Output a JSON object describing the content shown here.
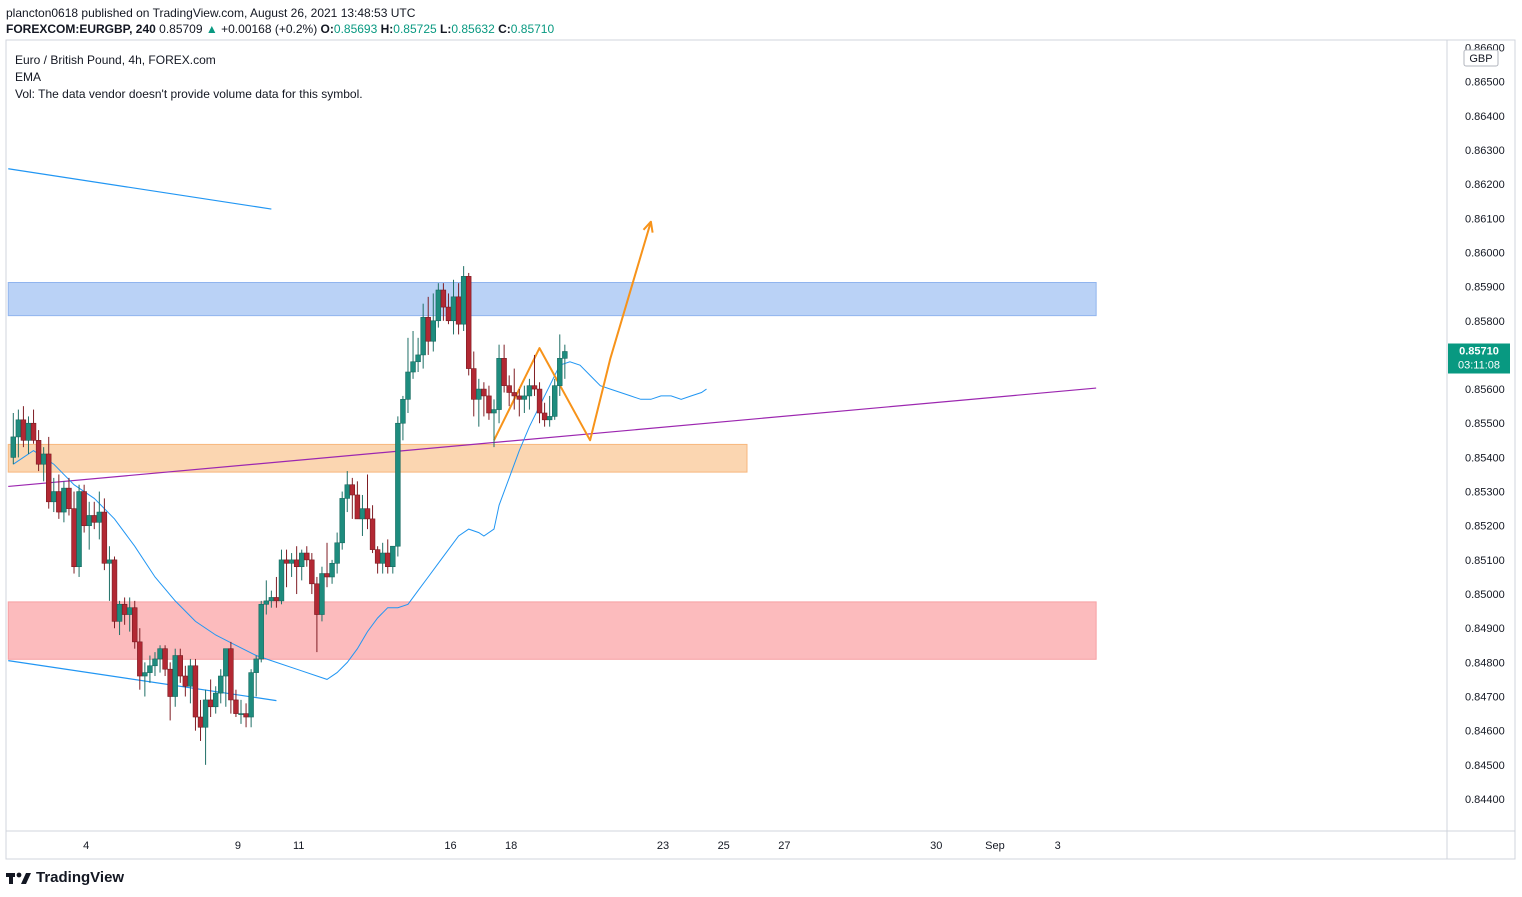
{
  "header": {
    "publisher": "plancton0618 published on TradingView.com, August 26, 2021 13:48:53 UTC",
    "symbol": "FOREXCOM:EURGBP, 240",
    "last": "0.85709",
    "change": "+0.00168 (+0.2%)",
    "o_label": "O:",
    "o_value": "0.85693",
    "h_label": "H:",
    "h_value": "0.85725",
    "l_label": "L:",
    "l_value": "0.85632",
    "c_label": "C:",
    "c_value": "0.85710"
  },
  "legend": {
    "title": "Euro / British Pound, 4h, FOREX.com",
    "ema": "EMA",
    "vol": "Vol: The data vendor doesn't provide volume data for this symbol."
  },
  "price_axis": {
    "currency": "GBP",
    "current_price": "0.85710",
    "countdown": "03:11:08"
  },
  "footer": {
    "brand": "TradingView"
  },
  "colors": {
    "up": "#26a69a",
    "down": "#ef5350",
    "up_body": "#1e8c7e",
    "down_body": "#b22833",
    "ema": "#2196f3",
    "trendline": "#9c27b0",
    "channel": "#2196f3",
    "arrow": "#f7931a",
    "zone_blue": "#b2cdf5",
    "zone_orange": "#fbd1a9",
    "zone_red": "#fcb4b6",
    "price_tag": "#089981"
  },
  "chart_data": {
    "type": "candlestick",
    "ylim": [
      0.8434,
      0.8662
    ],
    "yticks": [
      "0.84400",
      "0.84500",
      "0.84600",
      "0.84700",
      "0.84800",
      "0.84900",
      "0.85000",
      "0.85100",
      "0.85200",
      "0.85300",
      "0.85400",
      "0.85500",
      "0.85600",
      "0.85700",
      "0.85800",
      "0.85900",
      "0.86000",
      "0.86100",
      "0.86200",
      "0.86300",
      "0.86400",
      "0.86500",
      "0.86600"
    ],
    "xticks": [
      {
        "label": "4",
        "i": 14
      },
      {
        "label": "9",
        "i": 44
      },
      {
        "label": "11",
        "i": 56
      },
      {
        "label": "16",
        "i": 86
      },
      {
        "label": "18",
        "i": 98
      },
      {
        "label": "23",
        "i": 128
      },
      {
        "label": "25",
        "i": 140
      },
      {
        "label": "27",
        "i": 152
      },
      {
        "label": "30",
        "i": 182
      },
      {
        "label": "Sep",
        "i": 194
      },
      {
        "label": "3",
        "i": 206
      }
    ],
    "candles": [
      [
        0.854,
        0.8553,
        0.8538,
        0.8546
      ],
      [
        0.8546,
        0.8554,
        0.854,
        0.8551
      ],
      [
        0.8551,
        0.8555,
        0.8543,
        0.8545
      ],
      [
        0.8545,
        0.8552,
        0.8541,
        0.855
      ],
      [
        0.855,
        0.8554,
        0.8544,
        0.8545
      ],
      [
        0.8545,
        0.8548,
        0.8536,
        0.8538
      ],
      [
        0.8538,
        0.8543,
        0.8533,
        0.8541
      ],
      [
        0.8541,
        0.8546,
        0.8525,
        0.8527
      ],
      [
        0.8527,
        0.8534,
        0.8524,
        0.853
      ],
      [
        0.853,
        0.8535,
        0.8522,
        0.8524
      ],
      [
        0.8524,
        0.8533,
        0.8521,
        0.8531
      ],
      [
        0.8531,
        0.8534,
        0.8523,
        0.8525
      ],
      [
        0.8525,
        0.853,
        0.8506,
        0.8508
      ],
      [
        0.8508,
        0.8532,
        0.8505,
        0.853
      ],
      [
        0.853,
        0.8532,
        0.8518,
        0.852
      ],
      [
        0.852,
        0.8527,
        0.8513,
        0.8523
      ],
      [
        0.8523,
        0.8527,
        0.8519,
        0.8521
      ],
      [
        0.8521,
        0.853,
        0.8516,
        0.8524
      ],
      [
        0.8524,
        0.8528,
        0.8507,
        0.8509
      ],
      [
        0.8509,
        0.8514,
        0.8498,
        0.851
      ],
      [
        0.851,
        0.8511,
        0.849,
        0.8492
      ],
      [
        0.8492,
        0.8498,
        0.8488,
        0.8497
      ],
      [
        0.8497,
        0.8499,
        0.8491,
        0.8494
      ],
      [
        0.8494,
        0.8499,
        0.8489,
        0.8496
      ],
      [
        0.8496,
        0.8498,
        0.8484,
        0.8486
      ],
      [
        0.8486,
        0.849,
        0.8472,
        0.8476
      ],
      [
        0.8476,
        0.848,
        0.847,
        0.8477
      ],
      [
        0.8477,
        0.8482,
        0.8474,
        0.8479
      ],
      [
        0.8479,
        0.8483,
        0.8476,
        0.8481
      ],
      [
        0.8481,
        0.8485,
        0.8477,
        0.8484
      ],
      [
        0.8484,
        0.8485,
        0.8476,
        0.8478
      ],
      [
        0.8478,
        0.848,
        0.8463,
        0.847
      ],
      [
        0.847,
        0.8484,
        0.8467,
        0.8482
      ],
      [
        0.8482,
        0.8484,
        0.8474,
        0.8476
      ],
      [
        0.8476,
        0.8479,
        0.847,
        0.8473
      ],
      [
        0.8473,
        0.8481,
        0.8468,
        0.8479
      ],
      [
        0.8479,
        0.8481,
        0.846,
        0.8464
      ],
      [
        0.8464,
        0.8469,
        0.8457,
        0.8461
      ],
      [
        0.8461,
        0.8472,
        0.845,
        0.8469
      ],
      [
        0.8469,
        0.8475,
        0.8464,
        0.8467
      ],
      [
        0.8467,
        0.8473,
        0.8465,
        0.8471
      ],
      [
        0.8471,
        0.8478,
        0.8468,
        0.8476
      ],
      [
        0.8476,
        0.8484,
        0.8467,
        0.8484
      ],
      [
        0.8484,
        0.8486,
        0.8465,
        0.8469
      ],
      [
        0.8469,
        0.8472,
        0.8464,
        0.8465
      ],
      [
        0.8465,
        0.8469,
        0.8462,
        0.8465
      ],
      [
        0.8465,
        0.8468,
        0.8461,
        0.8464
      ],
      [
        0.8464,
        0.8478,
        0.8461,
        0.8477
      ],
      [
        0.8477,
        0.8482,
        0.847,
        0.8481
      ],
      [
        0.8481,
        0.8498,
        0.848,
        0.8497
      ],
      [
        0.8497,
        0.8504,
        0.8494,
        0.8498
      ],
      [
        0.8498,
        0.8501,
        0.8496,
        0.8499
      ],
      [
        0.8499,
        0.8505,
        0.8496,
        0.8498
      ],
      [
        0.8498,
        0.8513,
        0.8497,
        0.851
      ],
      [
        0.851,
        0.8513,
        0.8502,
        0.8509
      ],
      [
        0.8509,
        0.8512,
        0.8505,
        0.851
      ],
      [
        0.851,
        0.8514,
        0.85,
        0.8508
      ],
      [
        0.8508,
        0.8513,
        0.8504,
        0.8512
      ],
      [
        0.8512,
        0.8514,
        0.8508,
        0.851
      ],
      [
        0.851,
        0.8512,
        0.85,
        0.8503
      ],
      [
        0.8503,
        0.8505,
        0.8483,
        0.8494
      ],
      [
        0.8494,
        0.8508,
        0.8492,
        0.8506
      ],
      [
        0.8506,
        0.8515,
        0.8502,
        0.8505
      ],
      [
        0.8505,
        0.851,
        0.8503,
        0.8509
      ],
      [
        0.8509,
        0.8518,
        0.8506,
        0.8515
      ],
      [
        0.8515,
        0.853,
        0.8513,
        0.8528
      ],
      [
        0.8528,
        0.8536,
        0.8524,
        0.8532
      ],
      [
        0.8532,
        0.8534,
        0.8522,
        0.8529
      ],
      [
        0.8529,
        0.8533,
        0.8522,
        0.8522
      ],
      [
        0.8522,
        0.8529,
        0.8517,
        0.8525
      ],
      [
        0.8525,
        0.8535,
        0.8519,
        0.8522
      ],
      [
        0.8522,
        0.8526,
        0.8512,
        0.8513
      ],
      [
        0.8513,
        0.8514,
        0.8506,
        0.8509
      ],
      [
        0.8509,
        0.8515,
        0.8506,
        0.8512
      ],
      [
        0.8512,
        0.8516,
        0.8506,
        0.8508
      ],
      [
        0.8508,
        0.8514,
        0.8506,
        0.8514
      ],
      [
        0.8514,
        0.8552,
        0.8511,
        0.855
      ],
      [
        0.855,
        0.8558,
        0.8545,
        0.8557
      ],
      [
        0.8557,
        0.8575,
        0.8553,
        0.8565
      ],
      [
        0.8565,
        0.8577,
        0.8563,
        0.8568
      ],
      [
        0.8568,
        0.8575,
        0.8565,
        0.857
      ],
      [
        0.857,
        0.8585,
        0.8566,
        0.8581
      ],
      [
        0.8581,
        0.8587,
        0.857,
        0.8574
      ],
      [
        0.8574,
        0.8588,
        0.8571,
        0.858
      ],
      [
        0.858,
        0.8591,
        0.8578,
        0.8589
      ],
      [
        0.8589,
        0.8591,
        0.858,
        0.8584
      ],
      [
        0.8584,
        0.8588,
        0.8579,
        0.858
      ],
      [
        0.858,
        0.8592,
        0.8576,
        0.8587
      ],
      [
        0.8587,
        0.8591,
        0.8576,
        0.8579
      ],
      [
        0.8579,
        0.8596,
        0.8577,
        0.8593
      ],
      [
        0.8593,
        0.8594,
        0.8564,
        0.8566
      ],
      [
        0.8566,
        0.8571,
        0.8552,
        0.8557
      ],
      [
        0.8557,
        0.8563,
        0.8549,
        0.856
      ],
      [
        0.856,
        0.8562,
        0.8552,
        0.8558
      ],
      [
        0.8558,
        0.8561,
        0.8551,
        0.8553
      ],
      [
        0.8553,
        0.8557,
        0.8543,
        0.8554
      ],
      [
        0.8554,
        0.8573,
        0.855,
        0.8569
      ],
      [
        0.8569,
        0.8573,
        0.8559,
        0.8561
      ],
      [
        0.8561,
        0.8564,
        0.8555,
        0.8559
      ],
      [
        0.8559,
        0.8566,
        0.8554,
        0.8558
      ],
      [
        0.8558,
        0.856,
        0.8552,
        0.8557
      ],
      [
        0.8557,
        0.8561,
        0.8553,
        0.8558
      ],
      [
        0.8558,
        0.8563,
        0.8554,
        0.8561
      ],
      [
        0.8561,
        0.857,
        0.8558,
        0.856
      ],
      [
        0.856,
        0.8562,
        0.855,
        0.8553
      ],
      [
        0.8553,
        0.8556,
        0.8549,
        0.8551
      ],
      [
        0.8551,
        0.8558,
        0.8549,
        0.8552
      ],
      [
        0.8552,
        0.8563,
        0.8551,
        0.8561
      ],
      [
        0.8561,
        0.8576,
        0.8558,
        0.8569
      ],
      [
        0.8569,
        0.8573,
        0.8563,
        0.8571
      ]
    ],
    "ema": [
      [
        0,
        0.8538
      ],
      [
        4,
        0.8542
      ],
      [
        8,
        0.8538
      ],
      [
        12,
        0.8532
      ],
      [
        16,
        0.8528
      ],
      [
        20,
        0.8522
      ],
      [
        24,
        0.8514
      ],
      [
        28,
        0.8505
      ],
      [
        32,
        0.8498
      ],
      [
        36,
        0.8492
      ],
      [
        40,
        0.8488
      ],
      [
        44,
        0.8485
      ],
      [
        48,
        0.8482
      ],
      [
        52,
        0.848
      ],
      [
        56,
        0.8478
      ],
      [
        60,
        0.8476
      ],
      [
        62,
        0.8475
      ],
      [
        64,
        0.8477
      ],
      [
        66,
        0.848
      ],
      [
        68,
        0.8484
      ],
      [
        70,
        0.8489
      ],
      [
        72,
        0.8493
      ],
      [
        74,
        0.8496
      ],
      [
        76,
        0.8496
      ],
      [
        78,
        0.8497
      ],
      [
        80,
        0.8501
      ],
      [
        82,
        0.8505
      ],
      [
        84,
        0.8509
      ],
      [
        86,
        0.8513
      ],
      [
        88,
        0.8517
      ],
      [
        90,
        0.8519
      ],
      [
        92,
        0.8518
      ],
      [
        93,
        0.8517
      ],
      [
        95,
        0.8519
      ],
      [
        96,
        0.8526
      ],
      [
        98,
        0.8534
      ],
      [
        100,
        0.8542
      ],
      [
        102,
        0.8549
      ],
      [
        104,
        0.8555
      ],
      [
        106,
        0.8561
      ],
      [
        108,
        0.8567
      ],
      [
        110,
        0.8568
      ],
      [
        112,
        0.8567
      ],
      [
        114,
        0.8564
      ],
      [
        116,
        0.8561
      ],
      [
        118,
        0.856
      ],
      [
        120,
        0.8559
      ],
      [
        122,
        0.8558
      ],
      [
        124,
        0.8557
      ],
      [
        126,
        0.8557
      ],
      [
        128,
        0.8558
      ],
      [
        130,
        0.8558
      ],
      [
        132,
        0.8557
      ],
      [
        134,
        0.8558
      ],
      [
        136,
        0.8559
      ],
      [
        137,
        0.856
      ]
    ],
    "zones": [
      {
        "name": "resistance-zone",
        "i0": -1,
        "i1": 214,
        "y0": 0.85815,
        "y1": 0.85912
      },
      {
        "name": "support-zone-orange",
        "i0": -1,
        "i1": 145,
        "y0": 0.85357,
        "y1": 0.85438
      },
      {
        "name": "demand-zone-red",
        "i0": -1,
        "i1": 214,
        "y0": 0.84809,
        "y1": 0.84977
      }
    ],
    "trendlines": [
      {
        "name": "rising-trendline",
        "i0": -1,
        "y0": 0.85315,
        "i1": 214,
        "y1": 0.85603
      },
      {
        "name": "upper-channel-line",
        "i0": -1,
        "y0": 0.86245,
        "i1": 51,
        "y1": 0.86127
      },
      {
        "name": "lower-channel-line",
        "i0": -1,
        "y0": 0.84805,
        "i1": 52,
        "y1": 0.84688
      }
    ],
    "arrow_path": [
      [
        95,
        0.8545
      ],
      [
        104,
        0.8572
      ],
      [
        114,
        0.8545
      ],
      [
        118,
        0.8569
      ],
      [
        126,
        0.8609
      ]
    ]
  }
}
